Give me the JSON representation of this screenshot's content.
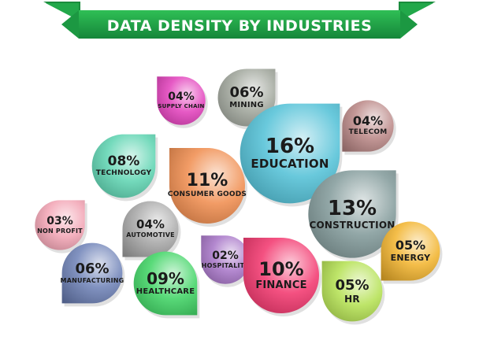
{
  "header": {
    "title": "DATA DENSITY BY INDUSTRIES"
  },
  "colors": {
    "banner": "#22a84a",
    "banner_dark": "#16702f"
  },
  "chart_data": {
    "type": "bubble-drops",
    "title": "DATA DENSITY BY INDUSTRIES",
    "unit": "%",
    "items": [
      {
        "label": "SUPPLY CHAIN",
        "value_text": "04%",
        "value": 4,
        "color": "#e23dbb"
      },
      {
        "label": "MINING",
        "value_text": "06%",
        "value": 6,
        "color": "#9fa49a"
      },
      {
        "label": "EDUCATION",
        "value_text": "16%",
        "value": 16,
        "color": "#4fc0d6"
      },
      {
        "label": "TELECOM",
        "value_text": "04%",
        "value": 4,
        "color": "#b98685"
      },
      {
        "label": "TECHNOLOGY",
        "value_text": "08%",
        "value": 8,
        "color": "#5bd3b0"
      },
      {
        "label": "CONSUMER GOODS",
        "value_text": "11%",
        "value": 11,
        "color": "#f08a4b"
      },
      {
        "label": "CONSTRUCTION",
        "value_text": "13%",
        "value": 13,
        "color": "#7f9797"
      },
      {
        "label": "NON PROFIT",
        "value_text": "03%",
        "value": 3,
        "color": "#f2a2b3"
      },
      {
        "label": "AUTOMOTIVE",
        "value_text": "04%",
        "value": 4,
        "color": "#a7a7a7"
      },
      {
        "label": "HOSPITALITY",
        "value_text": "02%",
        "value": 2,
        "color": "#a673c6"
      },
      {
        "label": "FINANCE",
        "value_text": "10%",
        "value": 10,
        "color": "#f2326b"
      },
      {
        "label": "ENERGY",
        "value_text": "05%",
        "value": 5,
        "color": "#f2b22a"
      },
      {
        "label": "MANUFACTURING",
        "value_text": "06%",
        "value": 6,
        "color": "#6c80b6"
      },
      {
        "label": "HEALTHCARE",
        "value_text": "09%",
        "value": 9,
        "color": "#3cd461"
      },
      {
        "label": "HR",
        "value_text": "05%",
        "value": 5,
        "color": "#b2e04e"
      }
    ]
  }
}
